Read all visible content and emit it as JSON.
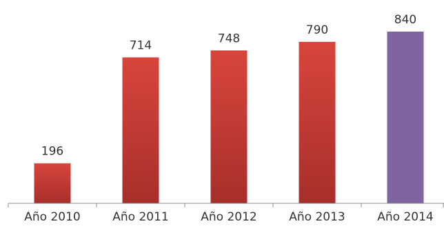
{
  "chart_data": {
    "type": "bar",
    "title": "",
    "xlabel": "",
    "ylabel": "",
    "categories": [
      "Año 2010",
      "Año 2011",
      "Año 2012",
      "Año 2013",
      "Año 2014"
    ],
    "values": [
      196,
      714,
      748,
      790,
      840
    ],
    "data_labels": [
      "196",
      "714",
      "748",
      "790",
      "840"
    ],
    "ylim": [
      0,
      900
    ],
    "grid": false,
    "legend": "none",
    "colors": {
      "bar_default_top": "#d8453d",
      "bar_default_bottom": "#a72f2a",
      "bar_highlight": "#8064a2"
    },
    "highlight_index": 4
  }
}
